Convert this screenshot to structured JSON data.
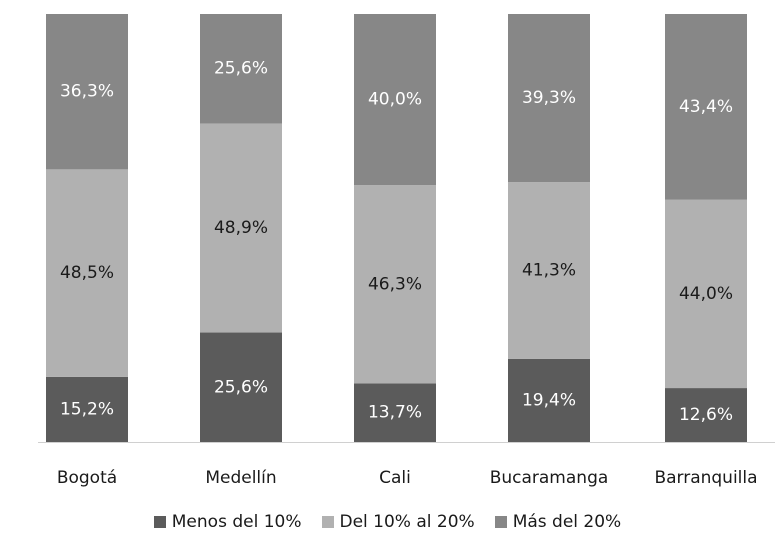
{
  "chart_data": {
    "type": "bar",
    "stacked": true,
    "percent_axis": true,
    "categories": [
      "Bogotá",
      "Medellín",
      "Cali",
      "Bucaramanga",
      "Barranquilla"
    ],
    "series": [
      {
        "name": "Menos del 10%",
        "color": "#5b5b5b",
        "label_color": "#ffffff",
        "values": [
          15.2,
          25.6,
          13.7,
          19.4,
          12.6
        ],
        "labels": [
          "15,2%",
          "25,6%",
          "13,7%",
          "19,4%",
          "12,6%"
        ]
      },
      {
        "name": "Del 10% al 20%",
        "color": "#b1b1b1",
        "label_color": "#1a1a1a",
        "values": [
          48.5,
          48.9,
          46.3,
          41.3,
          44.0
        ],
        "labels": [
          "48,5%",
          "48,9%",
          "46,3%",
          "41,3%",
          "44,0%"
        ]
      },
      {
        "name": "Más del 20%",
        "color": "#878787",
        "label_color": "#ffffff",
        "values": [
          36.3,
          25.6,
          40.0,
          39.3,
          43.4
        ],
        "labels": [
          "36,3%",
          "25,6%",
          "40,0%",
          "39,3%",
          "43,4%"
        ]
      }
    ],
    "legend_position": "bottom",
    "grid": false
  }
}
